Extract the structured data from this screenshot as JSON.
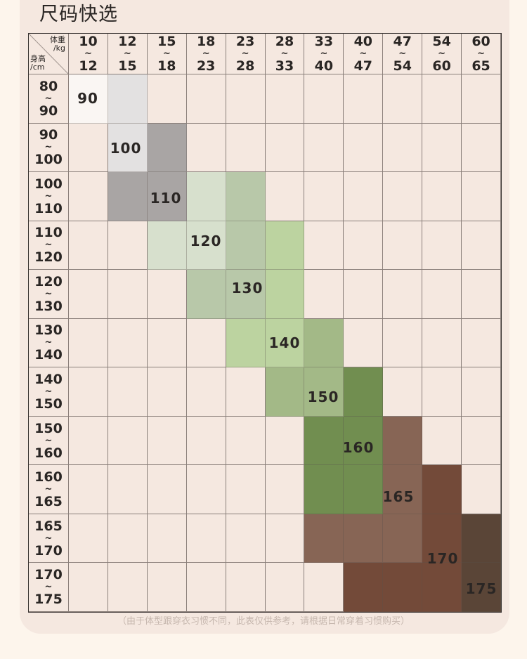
{
  "title": "尺码快选",
  "corner": {
    "weight_label": "体重",
    "weight_unit": "/kg",
    "height_label": "身高",
    "height_unit": "/cm"
  },
  "weight_columns": [
    [
      "10",
      "12"
    ],
    [
      "12",
      "15"
    ],
    [
      "15",
      "18"
    ],
    [
      "18",
      "23"
    ],
    [
      "23",
      "28"
    ],
    [
      "28",
      "33"
    ],
    [
      "33",
      "40"
    ],
    [
      "40",
      "47"
    ],
    [
      "47",
      "54"
    ],
    [
      "54",
      "60"
    ],
    [
      "60",
      "65"
    ]
  ],
  "height_rows": [
    [
      "80",
      "90"
    ],
    [
      "90",
      "100"
    ],
    [
      "100",
      "110"
    ],
    [
      "110",
      "120"
    ],
    [
      "120",
      "130"
    ],
    [
      "130",
      "140"
    ],
    [
      "140",
      "150"
    ],
    [
      "150",
      "160"
    ],
    [
      "160",
      "165"
    ],
    [
      "165",
      "170"
    ],
    [
      "170",
      "175"
    ]
  ],
  "tilde": "~",
  "size_grid": [
    [
      "90",
      "100",
      null,
      null,
      null,
      null,
      null,
      null,
      null,
      null,
      null
    ],
    [
      null,
      "100",
      "110",
      null,
      null,
      null,
      null,
      null,
      null,
      null,
      null
    ],
    [
      null,
      "110",
      "110",
      "120",
      "130",
      null,
      null,
      null,
      null,
      null,
      null
    ],
    [
      null,
      null,
      "120",
      "120",
      "130",
      "140",
      null,
      null,
      null,
      null,
      null
    ],
    [
      null,
      null,
      null,
      "130",
      "130",
      "140",
      null,
      null,
      null,
      null,
      null
    ],
    [
      null,
      null,
      null,
      null,
      "140",
      "140",
      "150",
      null,
      null,
      null,
      null
    ],
    [
      null,
      null,
      null,
      null,
      null,
      "150",
      "150",
      "160",
      null,
      null,
      null
    ],
    [
      null,
      null,
      null,
      null,
      null,
      null,
      "160",
      "160",
      "165",
      null,
      null
    ],
    [
      null,
      null,
      null,
      null,
      null,
      null,
      "160",
      "160",
      "165",
      "170",
      null
    ],
    [
      null,
      null,
      null,
      null,
      null,
      null,
      "165",
      "165",
      "165",
      "170",
      "175"
    ],
    [
      null,
      null,
      null,
      null,
      null,
      null,
      null,
      "170",
      "170",
      "170",
      "175"
    ]
  ],
  "sizes": [
    "90",
    "100",
    "110",
    "120",
    "130",
    "140",
    "150",
    "160",
    "165",
    "170",
    "175"
  ],
  "size_colors": {
    "90": "#faf6f3",
    "100": "#e3e1e1",
    "110": "#a9a5a4",
    "120": "#d7e0cd",
    "130": "#b8c8a9",
    "140": "#bcd3a0",
    "150": "#a3b987",
    "160": "#718e50",
    "165": "#876555",
    "170": "#734a39",
    "175": "#5a4537"
  },
  "empty_cell_color": "#f5e8e0",
  "note": "（由于体型跟穿衣习惯不同，此表仅供参考，请根据日常穿着习惯购买）"
}
